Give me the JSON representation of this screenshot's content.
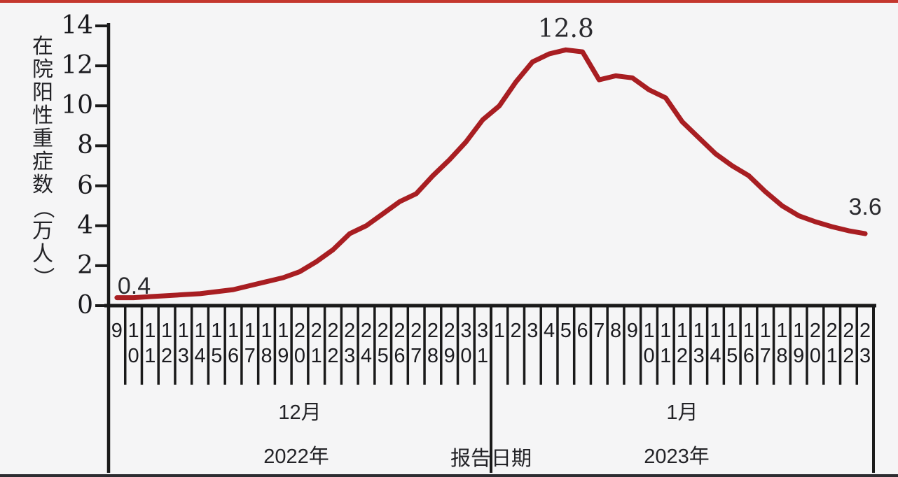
{
  "chart_data": {
    "type": "line",
    "title": "",
    "ylabel": "在院阳性重症数（万人）",
    "xlabel": "报告日期",
    "ylim": [
      0,
      14
    ],
    "yticks": [
      0,
      2,
      4,
      6,
      8,
      10,
      12,
      14
    ],
    "grid": false,
    "legend": "none",
    "x_groups": [
      {
        "month": "12月",
        "year": "2022年",
        "days": [
          9,
          10,
          11,
          12,
          13,
          14,
          15,
          16,
          17,
          18,
          19,
          20,
          21,
          22,
          23,
          24,
          25,
          26,
          27,
          28,
          29,
          30,
          31
        ]
      },
      {
        "month": "1月",
        "year": "2023年",
        "days": [
          1,
          2,
          3,
          4,
          5,
          6,
          7,
          8,
          9,
          10,
          11,
          12,
          13,
          14,
          15,
          16,
          17,
          18,
          19,
          20,
          21,
          22,
          23
        ]
      }
    ],
    "series": [
      {
        "name": "在院阳性重症数",
        "color": "#a81e22",
        "values": [
          0.4,
          0.4,
          0.45,
          0.5,
          0.55,
          0.6,
          0.7,
          0.8,
          1.0,
          1.2,
          1.4,
          1.7,
          2.2,
          2.8,
          3.6,
          4.0,
          4.6,
          5.2,
          5.6,
          6.5,
          7.3,
          8.2,
          9.3,
          10.0,
          11.2,
          12.2,
          12.6,
          12.8,
          12.7,
          11.3,
          11.5,
          11.4,
          10.8,
          10.4,
          9.2,
          8.4,
          7.6,
          7.0,
          6.5,
          5.7,
          5.0,
          4.5,
          4.2,
          3.95,
          3.75,
          3.6
        ]
      }
    ],
    "annotations": [
      {
        "index": 0,
        "label": "0.4",
        "align": "left",
        "dy": -36
      },
      {
        "index": 27,
        "label": "12.8",
        "align": "center",
        "dy": -50
      },
      {
        "index": 45,
        "label": "3.6",
        "align": "center",
        "dy": -57
      }
    ]
  },
  "decorations": {
    "top_bar_color": "#c4372e",
    "bottom_bar_color": "#2d2d31",
    "background_color": "#f5f5f6",
    "axis_color": "#1a1a1a"
  }
}
